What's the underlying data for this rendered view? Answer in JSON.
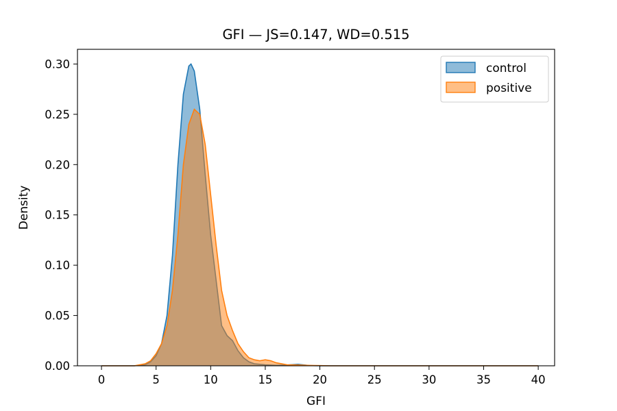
{
  "chart_data": {
    "type": "area",
    "title": "GFI — JS=0.147, WD=0.515",
    "xlabel": "GFI",
    "ylabel": "Density",
    "xlim": [
      -2.2,
      41.5
    ],
    "ylim": [
      0,
      0.3146
    ],
    "xticks": [
      0,
      5,
      10,
      15,
      20,
      25,
      30,
      35,
      40
    ],
    "yticks": [
      0.0,
      0.05,
      0.1,
      0.15,
      0.2,
      0.25,
      0.3
    ],
    "ytick_labels": [
      "0.00",
      "0.05",
      "0.10",
      "0.15",
      "0.20",
      "0.25",
      "0.30"
    ],
    "grid": false,
    "legend_position": "top-right",
    "series": [
      {
        "name": "control",
        "color": "#1f77b4",
        "points": [
          [
            0,
            0.0
          ],
          [
            3.0,
            0.0
          ],
          [
            4.0,
            0.001
          ],
          [
            4.5,
            0.004
          ],
          [
            5.0,
            0.01
          ],
          [
            5.5,
            0.022
          ],
          [
            6.0,
            0.05
          ],
          [
            6.5,
            0.11
          ],
          [
            7.0,
            0.2
          ],
          [
            7.5,
            0.27
          ],
          [
            8.0,
            0.298
          ],
          [
            8.2,
            0.3
          ],
          [
            8.5,
            0.293
          ],
          [
            9.0,
            0.255
          ],
          [
            9.5,
            0.19
          ],
          [
            10.0,
            0.13
          ],
          [
            10.5,
            0.085
          ],
          [
            11.0,
            0.04
          ],
          [
            11.5,
            0.03
          ],
          [
            12.0,
            0.025
          ],
          [
            12.5,
            0.015
          ],
          [
            13.0,
            0.008
          ],
          [
            13.5,
            0.004
          ],
          [
            14.0,
            0.002
          ],
          [
            15.0,
            0.001
          ],
          [
            16.0,
            0.0005
          ],
          [
            17.0,
            0.0008
          ],
          [
            18.0,
            0.0015
          ],
          [
            19.0,
            0.0003
          ],
          [
            20.0,
            0.0
          ],
          [
            40.0,
            0.0
          ]
        ]
      },
      {
        "name": "positive",
        "color": "#ff7f0e",
        "points": [
          [
            0,
            0.0
          ],
          [
            3.0,
            0.0
          ],
          [
            3.5,
            0.001
          ],
          [
            4.0,
            0.002
          ],
          [
            4.5,
            0.005
          ],
          [
            5.0,
            0.012
          ],
          [
            5.5,
            0.022
          ],
          [
            6.0,
            0.04
          ],
          [
            6.5,
            0.075
          ],
          [
            7.0,
            0.13
          ],
          [
            7.5,
            0.2
          ],
          [
            8.0,
            0.24
          ],
          [
            8.5,
            0.255
          ],
          [
            9.0,
            0.25
          ],
          [
            9.5,
            0.22
          ],
          [
            10.0,
            0.17
          ],
          [
            10.5,
            0.12
          ],
          [
            11.0,
            0.075
          ],
          [
            11.5,
            0.05
          ],
          [
            12.0,
            0.035
          ],
          [
            12.5,
            0.022
          ],
          [
            13.0,
            0.014
          ],
          [
            13.5,
            0.008
          ],
          [
            14.0,
            0.006
          ],
          [
            14.5,
            0.005
          ],
          [
            15.0,
            0.006
          ],
          [
            15.5,
            0.005
          ],
          [
            16.0,
            0.003
          ],
          [
            17.0,
            0.001
          ],
          [
            18.0,
            0.0008
          ],
          [
            19.0,
            0.0004
          ],
          [
            20.0,
            0.0002
          ],
          [
            21.0,
            0.0
          ],
          [
            40.0,
            0.0
          ]
        ]
      }
    ]
  }
}
